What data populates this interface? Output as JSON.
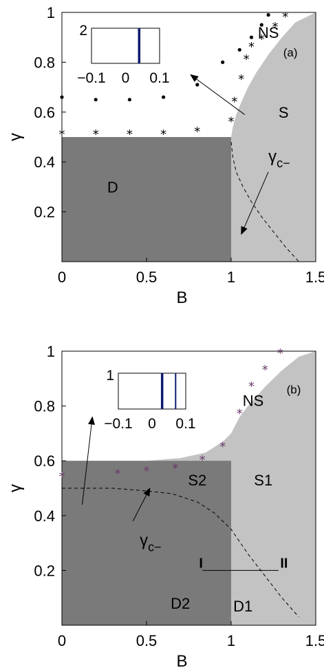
{
  "chart_data": [
    {
      "type": "line",
      "panel_label": "(a)",
      "xlabel": "B",
      "ylabel": "γ",
      "xlim": [
        0,
        1.5
      ],
      "ylim": [
        0,
        1
      ],
      "x_ticks": [
        "0",
        "0.5",
        "1",
        "1.5"
      ],
      "y_ticks": [
        "0.2",
        "0.4",
        "0.6",
        "0.8",
        "1"
      ],
      "regions": [
        {
          "label": "NS",
          "x": 1.22,
          "y": 0.92
        },
        {
          "label": "S",
          "x": 1.31,
          "y": 0.6
        },
        {
          "label": "D",
          "x": 0.3,
          "y": 0.3
        }
      ],
      "region_D": {
        "x_max": 1.0,
        "y_max": 0.5
      },
      "boundary_S": {
        "x": [
          1.0,
          1.01,
          1.03,
          1.06,
          1.1,
          1.15,
          1.22,
          1.3,
          1.38,
          1.5
        ],
        "y": [
          0.5,
          0.54,
          0.59,
          0.64,
          0.7,
          0.76,
          0.83,
          0.9,
          0.96,
          1.0
        ]
      },
      "gamma_c_line": {
        "label": "γ",
        "subscript": "c−",
        "x": [
          1.0,
          1.01,
          1.03,
          1.07,
          1.12,
          1.18,
          1.25,
          1.32,
          1.4
        ],
        "y": [
          0.48,
          0.42,
          0.36,
          0.3,
          0.24,
          0.18,
          0.12,
          0.06,
          0.0
        ]
      },
      "star_markers": {
        "x": [
          0,
          0.2,
          0.4,
          0.6,
          0.8,
          1.0,
          1.02,
          1.06,
          1.09,
          1.12,
          1.18,
          1.26,
          1.32
        ],
        "y": [
          0.52,
          0.52,
          0.52,
          0.52,
          0.53,
          0.57,
          0.65,
          0.74,
          0.82,
          0.87,
          0.9,
          0.95,
          0.99
        ]
      },
      "dot_markers": {
        "x": [
          0,
          0.2,
          0.4,
          0.6,
          0.8,
          0.95,
          1.05,
          1.12,
          1.18,
          1.22
        ],
        "y": [
          0.66,
          0.65,
          0.65,
          0.66,
          0.71,
          0.8,
          0.85,
          0.9,
          0.95,
          0.99
        ]
      },
      "inset": {
        "ytick": "2",
        "xticks": [
          "−0.1",
          "0",
          "0.1"
        ],
        "xlim": [
          -0.1,
          0.1
        ],
        "lines_x": [
          0.04
        ]
      },
      "arrows": [
        {
          "from": [
            1.08,
            0.59
          ],
          "to": [
            0.76,
            0.75
          ]
        },
        {
          "from": [
            1.22,
            0.36
          ],
          "to": [
            1.06,
            0.11
          ]
        }
      ]
    },
    {
      "type": "line",
      "panel_label": "(b)",
      "xlabel": "B",
      "ylabel": "γ",
      "xlim": [
        0,
        1.5
      ],
      "ylim": [
        0,
        1
      ],
      "x_ticks": [
        "0",
        "0.5",
        "1",
        "1.5"
      ],
      "y_ticks": [
        "0.2",
        "0.4",
        "0.6",
        "0.8",
        "1"
      ],
      "regions": [
        {
          "label": "NS",
          "x": 1.13,
          "y": 0.82
        },
        {
          "label": "S2",
          "x": 0.8,
          "y": 0.53
        },
        {
          "label": "S1",
          "x": 1.19,
          "y": 0.53
        },
        {
          "label": "D2",
          "x": 0.7,
          "y": 0.08
        },
        {
          "label": "D1",
          "x": 1.07,
          "y": 0.07
        }
      ],
      "region_D": {
        "x_max": 1.0,
        "y_max": 0.6
      },
      "boundary_S": {
        "x": [
          0,
          0.3,
          0.5,
          0.7,
          0.85,
          0.95,
          1.0,
          1.05,
          1.1,
          1.2,
          1.3,
          1.4,
          1.5
        ],
        "y": [
          0.6,
          0.6,
          0.6,
          0.61,
          0.63,
          0.67,
          0.7,
          0.76,
          0.8,
          0.87,
          0.93,
          0.98,
          1.0
        ]
      },
      "gamma_c_line": {
        "label": "γ",
        "subscript": "c−",
        "x": [
          0,
          0.3,
          0.5,
          0.65,
          0.8,
          0.9,
          1.0,
          1.1,
          1.2,
          1.3,
          1.4
        ],
        "y": [
          0.5,
          0.5,
          0.49,
          0.48,
          0.45,
          0.41,
          0.35,
          0.26,
          0.18,
          0.1,
          0.03
        ]
      },
      "star_markers": {
        "x": [
          0,
          0.33,
          0.5,
          0.67,
          0.83,
          0.95,
          1.05,
          1.12,
          1.2,
          1.29
        ],
        "y": [
          0.55,
          0.56,
          0.57,
          0.58,
          0.61,
          0.66,
          0.78,
          0.88,
          0.94,
          1.0
        ]
      },
      "inset": {
        "ytick": "1",
        "xticks": [
          "−0.1",
          "0",
          "0.1"
        ],
        "xlim": [
          -0.1,
          0.1
        ],
        "lines_x": [
          0.03,
          0.07
        ]
      },
      "marks": {
        "left": "I",
        "right": "II",
        "x1": 0.83,
        "x2": 1.28,
        "y": 0.2
      },
      "arrows": [
        {
          "from": [
            0.12,
            0.44
          ],
          "to": [
            0.18,
            0.76
          ]
        },
        {
          "from": [
            0.42,
            0.38
          ],
          "to": [
            0.52,
            0.5
          ]
        }
      ]
    }
  ]
}
